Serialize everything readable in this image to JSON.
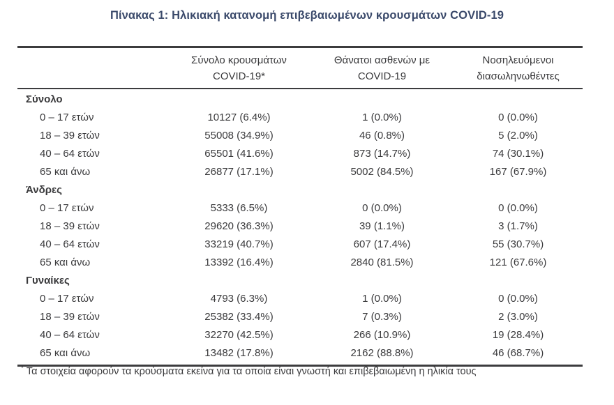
{
  "title": "Πίνακας 1: Ηλικιακή κατανομή επιβεβαιωμένων κρουσμάτων COVID-19",
  "table": {
    "columns": [
      {
        "line1": "Σύνολο κρουσμάτων",
        "line2": "COVID-19*"
      },
      {
        "line1": "Θάνατοι ασθενών με",
        "line2": "COVID-19"
      },
      {
        "line1": "Νοσηλευόμενοι",
        "line2": "διασωληνωθέντες"
      }
    ],
    "groups": [
      {
        "name": "Σύνολο",
        "rows": [
          {
            "age": "0 – 17 ετών",
            "cases": "10127 (6.4%)",
            "deaths": "1 (0.0%)",
            "intubated": "0 (0.0%)"
          },
          {
            "age": "18 – 39 ετών",
            "cases": "55008 (34.9%)",
            "deaths": "46 (0.8%)",
            "intubated": "5 (2.0%)"
          },
          {
            "age": "40 – 64 ετών",
            "cases": "65501 (41.6%)",
            "deaths": "873 (14.7%)",
            "intubated": "74 (30.1%)"
          },
          {
            "age": "65 και άνω",
            "cases": "26877 (17.1%)",
            "deaths": "5002 (84.5%)",
            "intubated": "167 (67.9%)"
          }
        ]
      },
      {
        "name": "Άνδρες",
        "rows": [
          {
            "age": "0 – 17 ετών",
            "cases": "5333 (6.5%)",
            "deaths": "0 (0.0%)",
            "intubated": "0 (0.0%)"
          },
          {
            "age": "18 – 39 ετών",
            "cases": "29620 (36.3%)",
            "deaths": "39 (1.1%)",
            "intubated": "3 (1.7%)"
          },
          {
            "age": "40 – 64 ετών",
            "cases": "33219 (40.7%)",
            "deaths": "607 (17.4%)",
            "intubated": "55 (30.7%)"
          },
          {
            "age": "65 και άνω",
            "cases": "13392 (16.4%)",
            "deaths": "2840 (81.5%)",
            "intubated": "121 (67.6%)"
          }
        ]
      },
      {
        "name": "Γυναίκες",
        "rows": [
          {
            "age": "0 – 17 ετών",
            "cases": "4793 (6.3%)",
            "deaths": "1 (0.0%)",
            "intubated": "0 (0.0%)"
          },
          {
            "age": "18 – 39 ετών",
            "cases": "25382 (33.4%)",
            "deaths": "7 (0.3%)",
            "intubated": "2 (3.0%)"
          },
          {
            "age": "40 – 64 ετών",
            "cases": "32270 (42.5%)",
            "deaths": "266 (10.9%)",
            "intubated": "19 (28.4%)"
          },
          {
            "age": "65 και άνω",
            "cases": "13482 (17.8%)",
            "deaths": "2162 (88.8%)",
            "intubated": "46 (68.7%)"
          }
        ]
      }
    ]
  },
  "footnote": {
    "marker": "*",
    "text": "Τα στοιχεία αφορούν τα κρούσματα εκείνα για τα οποία είναι γνωστή και επιβεβαιωμένη η ηλικία τους"
  },
  "colors": {
    "title_text": "#3b4a6b",
    "body_text": "#3a3a3c",
    "rule": "#3c3c3e",
    "background": "#ffffff"
  }
}
